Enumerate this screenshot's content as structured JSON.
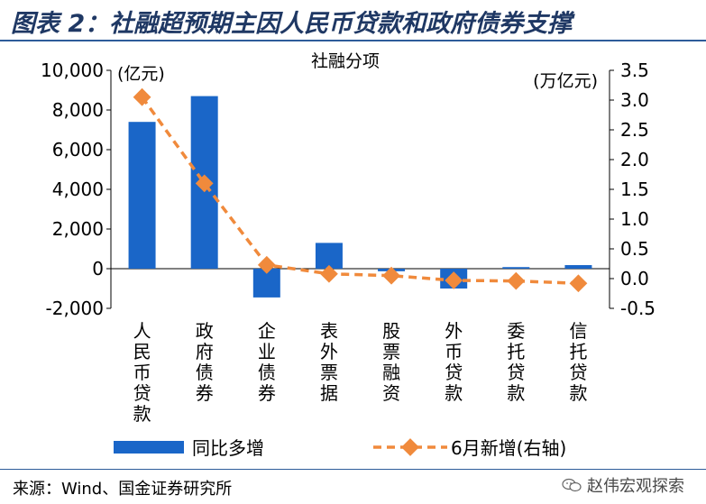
{
  "figure": {
    "title": "图表 2：社融超预期主因人民币贷款和政府债券支撑",
    "source": "来源：Wind、国金证券研究所",
    "watermark": "赵伟宏观探索",
    "watermark_icon": "wechat-icon"
  },
  "chart_data": {
    "type": "bar+line",
    "title": "社融分项",
    "categories": [
      "人民币贷款",
      "政府债券",
      "企业债券",
      "表外票据",
      "股票融资",
      "外币贷款",
      "委托贷款",
      "信托贷款"
    ],
    "series": [
      {
        "name": "同比多增",
        "type": "bar",
        "axis": "left",
        "color": "#1a66c8",
        "values": [
          7400,
          8700,
          -1450,
          1300,
          -130,
          -1000,
          80,
          180
        ]
      },
      {
        "name": "6月新增(右轴)",
        "type": "line",
        "axis": "right",
        "color": "#f08a3c",
        "values": [
          3.05,
          1.6,
          0.23,
          0.08,
          0.05,
          -0.03,
          -0.04,
          -0.08
        ]
      }
    ],
    "left_axis": {
      "unit": "(亿元)",
      "min": -2000,
      "max": 10000,
      "step": 2000,
      "tick_labels": [
        "-2,000",
        "0",
        "2,000",
        "4,000",
        "6,000",
        "8,000",
        "10,000"
      ]
    },
    "right_axis": {
      "unit": "(万亿元)",
      "min": -0.5,
      "max": 3.5,
      "step": 0.5,
      "tick_labels": [
        "-0.5",
        "0.0",
        "0.5",
        "1.0",
        "1.5",
        "2.0",
        "2.5",
        "3.0",
        "3.5"
      ]
    },
    "grid": false,
    "legend_position": "bottom"
  }
}
